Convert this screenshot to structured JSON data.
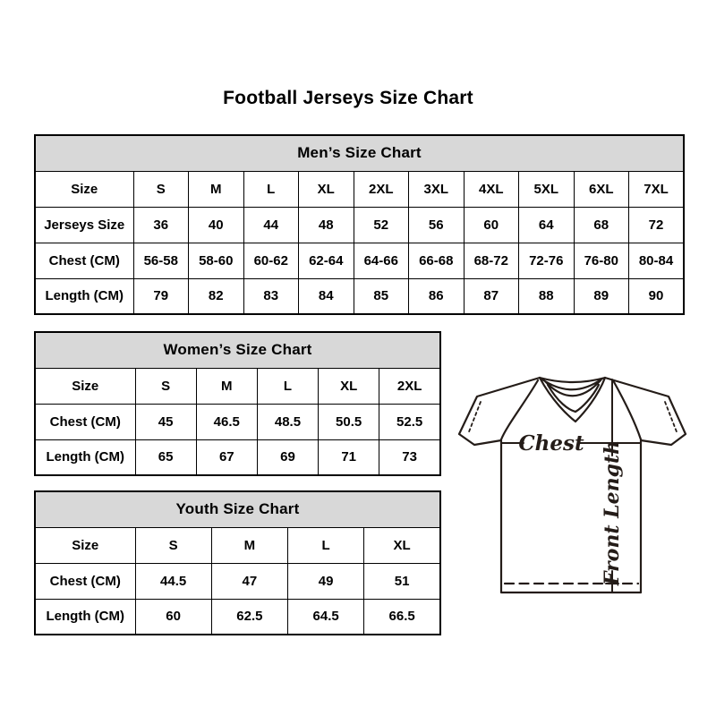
{
  "title": "Football Jerseys Size Chart",
  "tables": [
    {
      "id": "mens",
      "header": "Men’s Size Chart",
      "rows": [
        [
          "Size",
          "S",
          "M",
          "L",
          "XL",
          "2XL",
          "3XL",
          "4XL",
          "5XL",
          "6XL",
          "7XL"
        ],
        [
          "Jerseys Size",
          "36",
          "40",
          "44",
          "48",
          "52",
          "56",
          "60",
          "64",
          "68",
          "72"
        ],
        [
          "Chest (CM)",
          "56-58",
          "58-60",
          "60-62",
          "62-64",
          "64-66",
          "66-68",
          "68-72",
          "72-76",
          "76-80",
          "80-84"
        ],
        [
          "Length (CM)",
          "79",
          "82",
          "83",
          "84",
          "85",
          "86",
          "87",
          "88",
          "89",
          "90"
        ]
      ]
    },
    {
      "id": "womens",
      "header": "Women’s Size Chart",
      "rows": [
        [
          "Size",
          "S",
          "M",
          "L",
          "XL",
          "2XL"
        ],
        [
          "Chest (CM)",
          "45",
          "46.5",
          "48.5",
          "50.5",
          "52.5"
        ],
        [
          "Length (CM)",
          "65",
          "67",
          "69",
          "71",
          "73"
        ]
      ]
    },
    {
      "id": "youth",
      "header": "Youth Size Chart",
      "rows": [
        [
          "Size",
          "S",
          "M",
          "L",
          "XL"
        ],
        [
          "Chest (CM)",
          "44.5",
          "47",
          "49",
          "51"
        ],
        [
          "Length (CM)",
          "60",
          "62.5",
          "64.5",
          "66.5"
        ]
      ]
    }
  ],
  "diagram": {
    "chest_label": "Chest",
    "front_length_label": "Front Length"
  },
  "colors": {
    "table_header_bg": "#d8d8d8",
    "table_border": "#000000",
    "text": "#000000",
    "diagram_stroke": "#241c18"
  }
}
